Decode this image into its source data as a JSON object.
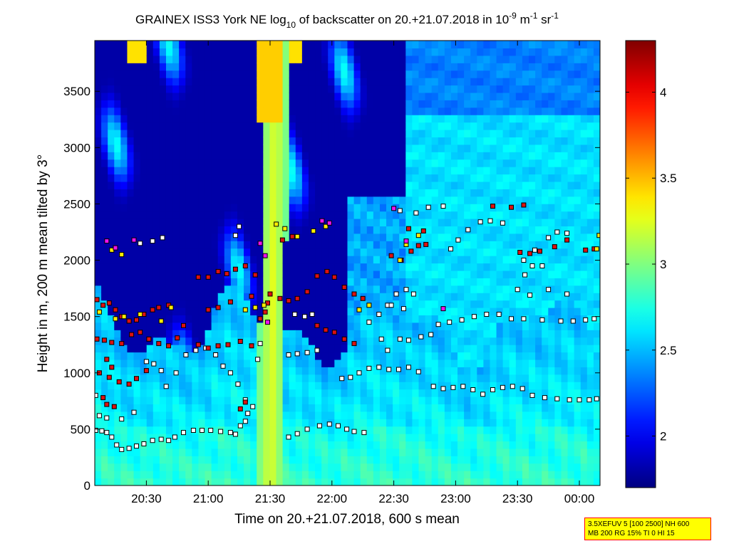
{
  "chart_data": {
    "type": "heatmap",
    "title": {
      "prefix": "GRAINEX ISS3 York NE log",
      "sub": "10",
      "middle": " of backscatter on 20.+21.07.2018 in 10",
      "sup1": "-9",
      "unit1": " m",
      "sup2": "-1",
      "unit2": " sr",
      "sup3": "-1"
    },
    "xlabel": "Time on 20.+21.07.2018, 600 s mean",
    "ylabel": "Height in m, 200 m mean tilted by 3°",
    "x_domain_hours": [
      20.083,
      24.167
    ],
    "x_ticks": [
      {
        "h": 20.5,
        "label": "20:30"
      },
      {
        "h": 21.0,
        "label": "21:00"
      },
      {
        "h": 21.5,
        "label": "21:30"
      },
      {
        "h": 22.0,
        "label": "22:00"
      },
      {
        "h": 22.5,
        "label": "22:30"
      },
      {
        "h": 23.0,
        "label": "23:00"
      },
      {
        "h": 23.5,
        "label": "23:30"
      },
      {
        "h": 24.0,
        "label": "00:00"
      }
    ],
    "ylim": [
      0,
      3950
    ],
    "y_ticks": [
      0,
      500,
      1000,
      1500,
      2000,
      2500,
      3000,
      3500
    ],
    "colorbar": {
      "range": [
        1.7,
        4.3
      ],
      "ticks": [
        2,
        2.5,
        3,
        3.5,
        4
      ],
      "colormap": "jet"
    },
    "field": {
      "low_layer_value": 2.75,
      "night_layer_top_m": 1500,
      "residual_value": 2.6,
      "clear_value": 1.8,
      "plume_time_h": 21.5,
      "plume_value": 3.25
    },
    "marker_series": [
      {
        "name": "white",
        "color": "#ffffff",
        "points": [
          [
            20.09,
            490
          ],
          [
            20.14,
            485
          ],
          [
            20.18,
            470
          ],
          [
            20.22,
            430
          ],
          [
            20.26,
            360
          ],
          [
            20.3,
            320
          ],
          [
            20.36,
            330
          ],
          [
            20.42,
            350
          ],
          [
            20.48,
            370
          ],
          [
            20.55,
            400
          ],
          [
            20.62,
            410
          ],
          [
            20.68,
            400
          ],
          [
            20.73,
            430
          ],
          [
            20.8,
            470
          ],
          [
            20.88,
            490
          ],
          [
            20.95,
            490
          ],
          [
            21.02,
            490
          ],
          [
            21.1,
            480
          ],
          [
            21.18,
            470
          ],
          [
            21.22,
            455
          ],
          [
            21.65,
            430
          ],
          [
            21.72,
            460
          ],
          [
            21.8,
            500
          ],
          [
            21.9,
            530
          ],
          [
            21.98,
            545
          ],
          [
            22.05,
            530
          ],
          [
            22.12,
            500
          ],
          [
            22.18,
            480
          ],
          [
            22.26,
            470
          ],
          [
            22.08,
            950
          ],
          [
            22.15,
            960
          ],
          [
            22.22,
            1000
          ],
          [
            22.3,
            1040
          ],
          [
            22.38,
            1050
          ],
          [
            22.46,
            1030
          ],
          [
            22.54,
            1030
          ],
          [
            22.62,
            1050
          ],
          [
            22.7,
            1010
          ],
          [
            22.82,
            880
          ],
          [
            22.9,
            860
          ],
          [
            22.98,
            870
          ],
          [
            23.06,
            880
          ],
          [
            23.14,
            850
          ],
          [
            23.22,
            810
          ],
          [
            23.3,
            850
          ],
          [
            23.38,
            870
          ],
          [
            23.46,
            880
          ],
          [
            23.54,
            860
          ],
          [
            23.62,
            800
          ],
          [
            23.72,
            780
          ],
          [
            23.82,
            770
          ],
          [
            23.92,
            760
          ],
          [
            24.0,
            760
          ],
          [
            24.08,
            760
          ],
          [
            24.14,
            770
          ],
          [
            20.5,
            1100
          ],
          [
            20.56,
            1080
          ],
          [
            20.62,
            1020
          ],
          [
            20.66,
            880
          ],
          [
            20.74,
            1000
          ],
          [
            20.82,
            1160
          ],
          [
            20.9,
            1200
          ],
          [
            20.98,
            1220
          ],
          [
            21.06,
            1160
          ],
          [
            21.12,
            1060
          ],
          [
            21.18,
            1000
          ],
          [
            21.24,
            900
          ],
          [
            21.3,
            760
          ],
          [
            21.65,
            1160
          ],
          [
            21.72,
            1170
          ],
          [
            21.8,
            1180
          ],
          [
            21.88,
            1200
          ],
          [
            22.3,
            1450
          ],
          [
            22.38,
            1520
          ],
          [
            22.45,
            1600
          ],
          [
            22.52,
            1700
          ],
          [
            22.6,
            1740
          ],
          [
            22.66,
            1700
          ],
          [
            22.86,
            1430
          ],
          [
            22.95,
            1450
          ],
          [
            23.05,
            1470
          ],
          [
            23.15,
            1500
          ],
          [
            23.25,
            1520
          ],
          [
            23.35,
            1520
          ],
          [
            23.45,
            1480
          ],
          [
            23.55,
            1480
          ],
          [
            23.7,
            1470
          ],
          [
            23.85,
            1460
          ],
          [
            23.95,
            1460
          ],
          [
            24.05,
            1470
          ],
          [
            24.12,
            1480
          ],
          [
            22.96,
            2100
          ],
          [
            23.02,
            2180
          ],
          [
            23.1,
            2270
          ],
          [
            23.2,
            2340
          ],
          [
            23.28,
            2350
          ],
          [
            23.38,
            2330
          ],
          [
            23.55,
            2000
          ],
          [
            23.64,
            2090
          ],
          [
            23.75,
            2200
          ],
          [
            23.82,
            2250
          ],
          [
            23.9,
            2240
          ],
          [
            23.5,
            1740
          ],
          [
            23.6,
            1690
          ],
          [
            23.75,
            1740
          ],
          [
            23.9,
            1700
          ],
          [
            22.55,
            2440
          ],
          [
            22.68,
            2420
          ],
          [
            22.78,
            2470
          ],
          [
            22.9,
            2480
          ],
          [
            20.45,
            2150
          ],
          [
            20.55,
            2170
          ],
          [
            20.63,
            2200
          ],
          [
            21.22,
            2220
          ],
          [
            21.25,
            2300
          ],
          [
            20.09,
            800
          ],
          [
            20.12,
            620
          ],
          [
            20.18,
            600
          ],
          [
            20.3,
            590
          ],
          [
            20.4,
            650
          ],
          [
            21.26,
            530
          ],
          [
            21.3,
            570
          ],
          [
            21.4,
            1120
          ],
          [
            21.42,
            1260
          ],
          [
            21.32,
            640
          ],
          [
            21.36,
            700
          ],
          [
            22.55,
            1300
          ],
          [
            22.62,
            1290
          ],
          [
            22.72,
            1320
          ],
          [
            22.8,
            1340
          ],
          [
            22.48,
            1600
          ],
          [
            22.58,
            1570
          ],
          [
            22.4,
            1300
          ],
          [
            22.45,
            1200
          ],
          [
            23.62,
            1950
          ],
          [
            23.56,
            1870
          ],
          [
            23.7,
            1950
          ],
          [
            21.78,
            1500
          ],
          [
            21.84,
            1520
          ],
          [
            21.7,
            1520
          ]
        ]
      },
      {
        "name": "red",
        "color": "#dd1111",
        "points": [
          [
            20.1,
            1650
          ],
          [
            20.15,
            1600
          ],
          [
            20.2,
            1620
          ],
          [
            20.25,
            1560
          ],
          [
            20.3,
            1500
          ],
          [
            20.36,
            1460
          ],
          [
            20.42,
            1470
          ],
          [
            20.48,
            1520
          ],
          [
            20.55,
            1560
          ],
          [
            20.6,
            1580
          ],
          [
            20.68,
            1600
          ],
          [
            20.1,
            1300
          ],
          [
            20.16,
            1290
          ],
          [
            20.22,
            1270
          ],
          [
            20.3,
            1260
          ],
          [
            20.38,
            1340
          ],
          [
            20.45,
            1360
          ],
          [
            20.52,
            1300
          ],
          [
            20.6,
            1260
          ],
          [
            20.68,
            1240
          ],
          [
            20.75,
            1310
          ],
          [
            20.8,
            1420
          ],
          [
            20.12,
            1000
          ],
          [
            20.2,
            960
          ],
          [
            20.28,
            920
          ],
          [
            20.36,
            900
          ],
          [
            20.42,
            950
          ],
          [
            20.5,
            1020
          ],
          [
            20.18,
            720
          ],
          [
            20.24,
            700
          ],
          [
            20.15,
            780
          ],
          [
            20.92,
            1850
          ],
          [
            21.0,
            1850
          ],
          [
            21.08,
            1900
          ],
          [
            21.15,
            1880
          ],
          [
            21.22,
            1920
          ],
          [
            21.3,
            1950
          ],
          [
            21.38,
            1870
          ],
          [
            20.92,
            1250
          ],
          [
            21.0,
            1220
          ],
          [
            21.08,
            1240
          ],
          [
            21.16,
            1250
          ],
          [
            21.26,
            1280
          ],
          [
            21.35,
            1240
          ],
          [
            21.5,
            1700
          ],
          [
            21.58,
            1660
          ],
          [
            21.65,
            1640
          ],
          [
            21.72,
            1660
          ],
          [
            21.8,
            1720
          ],
          [
            21.88,
            1860
          ],
          [
            21.96,
            1900
          ],
          [
            22.02,
            1850
          ],
          [
            22.1,
            1760
          ],
          [
            22.18,
            1700
          ],
          [
            22.25,
            1660
          ],
          [
            21.88,
            1420
          ],
          [
            21.95,
            1380
          ],
          [
            22.02,
            1360
          ],
          [
            22.1,
            1300
          ],
          [
            22.18,
            1260
          ],
          [
            22.48,
            2040
          ],
          [
            22.56,
            2000
          ],
          [
            22.64,
            2080
          ],
          [
            22.7,
            2130
          ],
          [
            22.76,
            2140
          ],
          [
            23.52,
            2070
          ],
          [
            23.6,
            2060
          ],
          [
            23.68,
            2080
          ],
          [
            23.8,
            2120
          ],
          [
            23.9,
            2180
          ],
          [
            24.05,
            2090
          ],
          [
            24.12,
            2100
          ],
          [
            22.62,
            2280
          ],
          [
            22.74,
            2260
          ],
          [
            23.45,
            2470
          ],
          [
            23.55,
            2490
          ],
          [
            23.3,
            2480
          ],
          [
            21.42,
            1480
          ],
          [
            21.46,
            1540
          ],
          [
            21.48,
            1620
          ],
          [
            21.35,
            1680
          ],
          [
            21.26,
            680
          ],
          [
            21.3,
            740
          ],
          [
            20.18,
            1120
          ],
          [
            20.22,
            1050
          ],
          [
            21.6,
            2180
          ],
          [
            21.68,
            2210
          ],
          [
            21.18,
            1630
          ],
          [
            21.08,
            1580
          ],
          [
            21.0,
            1560
          ]
        ]
      },
      {
        "name": "yellow",
        "color": "#ffee00",
        "points": [
          [
            20.25,
            1480
          ],
          [
            20.32,
            1500
          ],
          [
            20.12,
            1540
          ],
          [
            20.45,
            1520
          ],
          [
            20.62,
            1460
          ],
          [
            20.7,
            1580
          ],
          [
            21.3,
            1560
          ],
          [
            21.38,
            1580
          ],
          [
            21.45,
            1600
          ],
          [
            21.72,
            2210
          ],
          [
            21.85,
            2260
          ],
          [
            21.95,
            2300
          ],
          [
            22.55,
            2000
          ],
          [
            22.6,
            2140
          ],
          [
            22.7,
            2220
          ],
          [
            24.16,
            2220
          ],
          [
            24.14,
            2100
          ],
          [
            22.22,
            1560
          ],
          [
            22.3,
            1600
          ],
          [
            20.22,
            2090
          ],
          [
            20.3,
            2050
          ],
          [
            21.55,
            2320
          ],
          [
            21.62,
            2280
          ]
        ]
      },
      {
        "name": "magenta",
        "color": "#ee11ee",
        "points": [
          [
            20.18,
            2170
          ],
          [
            20.25,
            2110
          ],
          [
            20.4,
            2180
          ],
          [
            21.46,
            2040
          ],
          [
            21.48,
            1450
          ],
          [
            21.42,
            2150
          ],
          [
            22.9,
            1570
          ],
          [
            22.6,
            2170
          ],
          [
            22.5,
            2460
          ],
          [
            21.92,
            2350
          ],
          [
            21.98,
            2330
          ]
        ]
      }
    ]
  },
  "info_box": {
    "line1": "3.5XEFUV 5 [100 2500] NH 600",
    "line2": "MB 200 RG 15% TI 0 HI 15"
  }
}
